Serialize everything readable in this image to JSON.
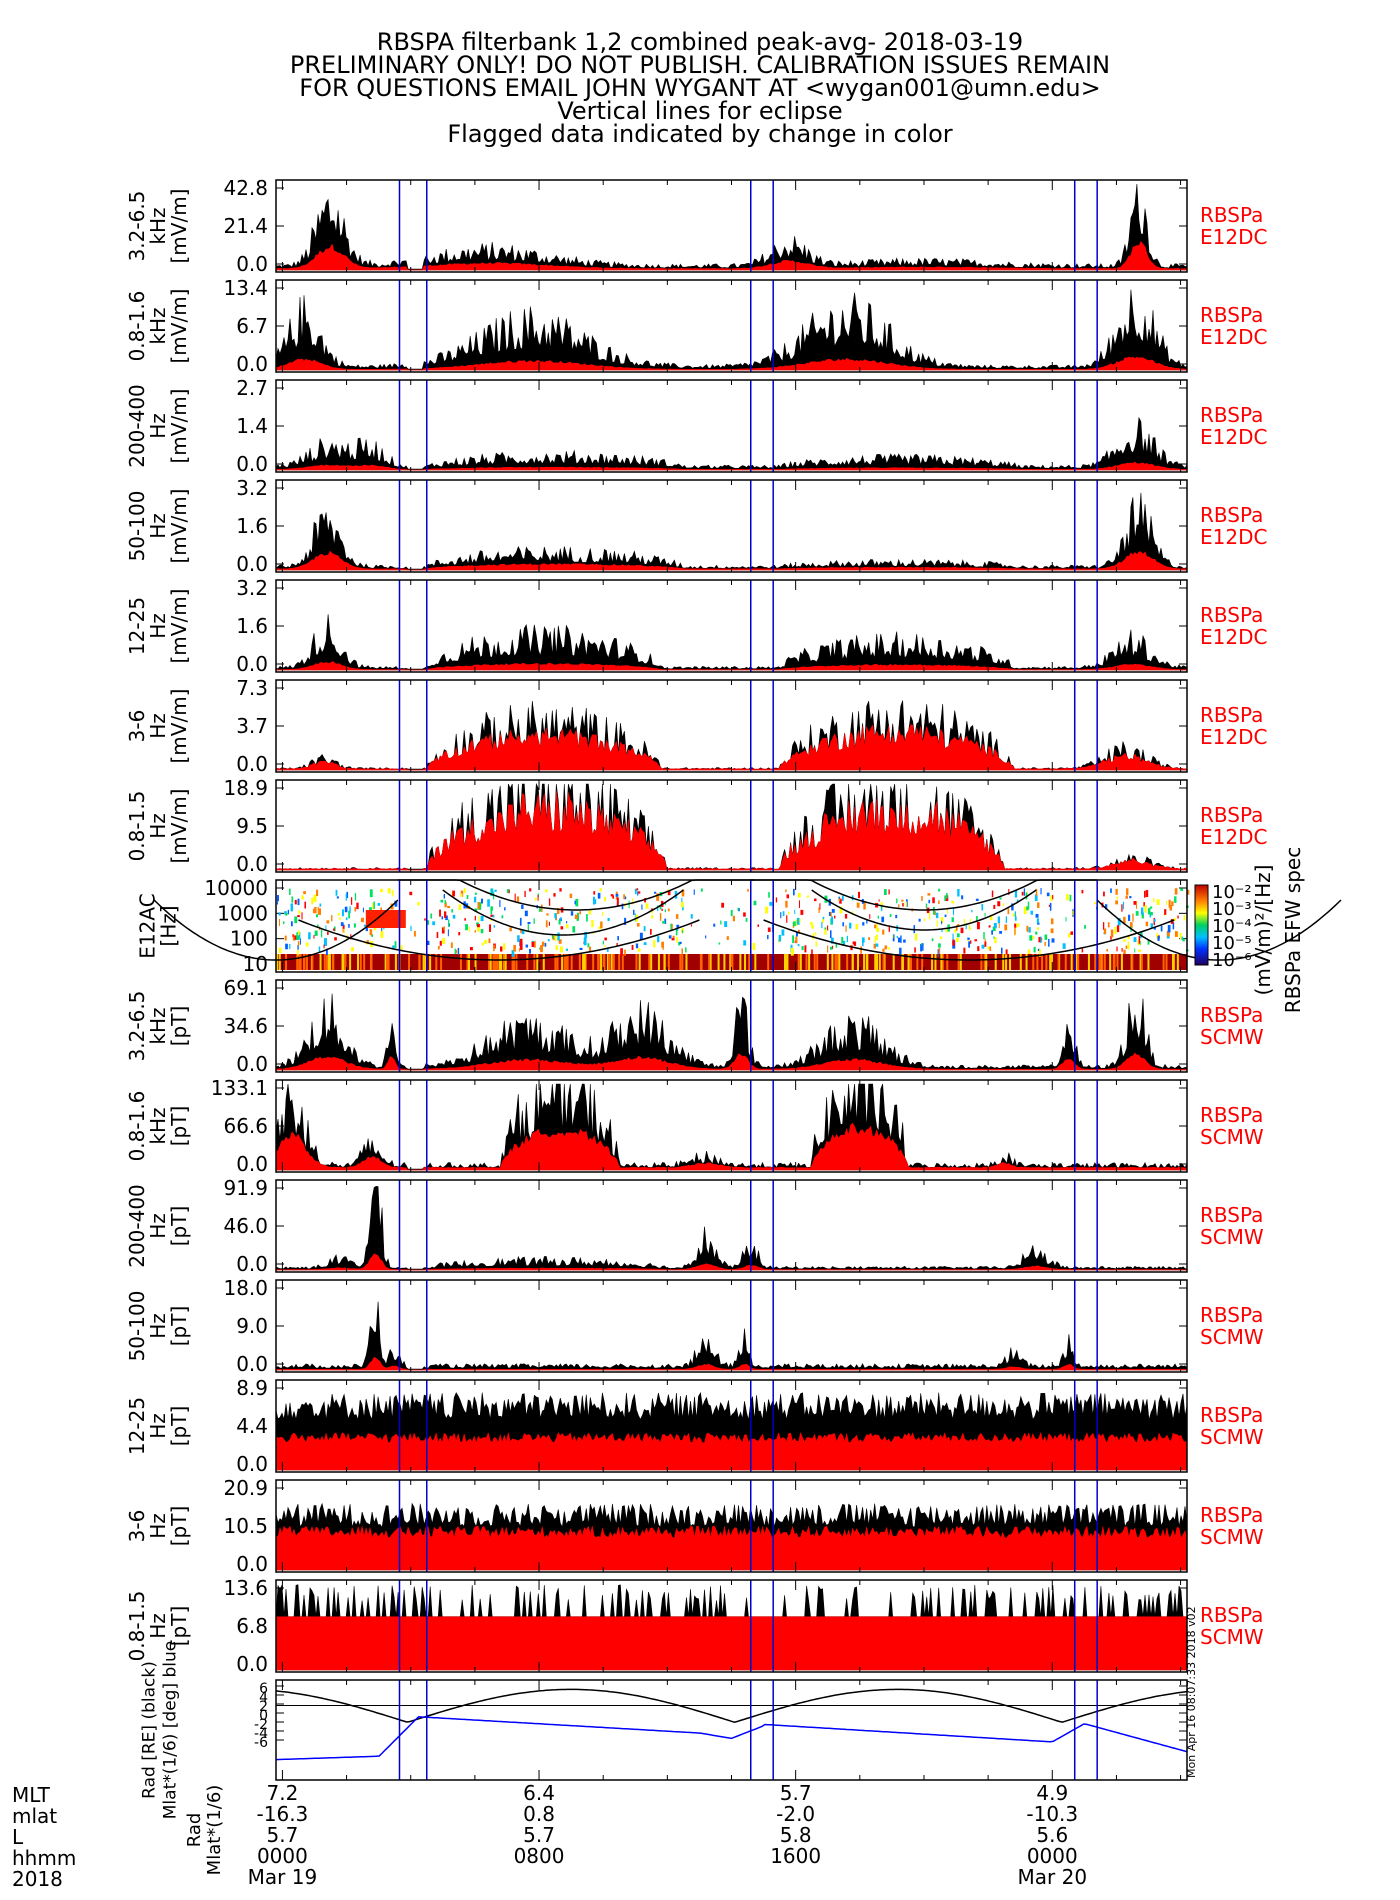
{
  "title_lines": [
    "RBSPA filterbank 1,2 combined peak-avg- 2018-03-19",
    "PRELIMINARY ONLY! DO NOT PUBLISH. CALIBRATION ISSUES REMAIN",
    "FOR QUESTIONS EMAIL JOHN WYGANT AT <wygan001@umn.edu>",
    "Vertical lines for eclipse",
    "Flagged data indicated by change in color"
  ],
  "colors": {
    "peak": "#000000",
    "avg": "#ff0000",
    "eclipse": "#0000cc",
    "label": "#ff0000",
    "trace_blue": "#0000ff"
  },
  "eclipse_hours": [
    3.65,
    4.5,
    14.6,
    15.3,
    24.7,
    25.4
  ],
  "time_range_hours": [
    -0.2,
    28.2
  ],
  "chart_data": [
    {
      "type": "area",
      "band_label": [
        "3.2-6.5",
        "kHz",
        "[mV/m]"
      ],
      "yticks": [
        "42.8",
        "21.4",
        "0.0"
      ],
      "ylim": [
        0,
        42.8
      ],
      "legend": [
        "RBSPa",
        "E12DC"
      ],
      "profile": "e_khz_high"
    },
    {
      "type": "area",
      "band_label": [
        "0.8-1.6",
        "kHz",
        "[mV/m]"
      ],
      "yticks": [
        "13.4",
        "6.7",
        "0.0"
      ],
      "ylim": [
        0,
        13.4
      ],
      "legend": [
        "RBSPa",
        "E12DC"
      ],
      "profile": "e_khz_low"
    },
    {
      "type": "area",
      "band_label": [
        "200-400",
        "Hz",
        "[mV/m]"
      ],
      "yticks": [
        "2.7",
        "1.4",
        "0.0"
      ],
      "ylim": [
        0,
        2.7
      ],
      "legend": [
        "RBSPa",
        "E12DC"
      ],
      "profile": "e_200"
    },
    {
      "type": "area",
      "band_label": [
        "50-100",
        "Hz",
        "[mV/m]"
      ],
      "yticks": [
        "3.2",
        "1.6",
        "0.0"
      ],
      "ylim": [
        0,
        3.2
      ],
      "legend": [
        "RBSPa",
        "E12DC"
      ],
      "profile": "e_50"
    },
    {
      "type": "area",
      "band_label": [
        "12-25",
        "Hz",
        "[mV/m]"
      ],
      "yticks": [
        "3.2",
        "1.6",
        "0.0"
      ],
      "ylim": [
        0,
        3.2
      ],
      "legend": [
        "RBSPa",
        "E12DC"
      ],
      "profile": "e_12"
    },
    {
      "type": "area",
      "band_label": [
        "3-6",
        "Hz",
        "[mV/m]"
      ],
      "yticks": [
        "7.3",
        "3.7",
        "0.0"
      ],
      "ylim": [
        0,
        7.3
      ],
      "legend": [
        "RBSPa",
        "E12DC"
      ],
      "profile": "e_3"
    },
    {
      "type": "area",
      "band_label": [
        "0.8-1.5",
        "Hz",
        "[mV/m]"
      ],
      "yticks": [
        "18.9",
        "9.5",
        "0.0"
      ],
      "ylim": [
        0,
        18.9
      ],
      "legend": [
        "RBSPa",
        "E12DC"
      ],
      "profile": "e_08"
    },
    {
      "type": "heatmap",
      "band_label": [
        "E12AC",
        "[Hz]"
      ],
      "yticks": [
        "10000",
        "1000",
        "100",
        "10"
      ],
      "colorbar_ticks": [
        "10⁻²",
        "10⁻³",
        "10⁻⁴",
        "10⁻⁵",
        "10⁻⁶"
      ],
      "colorbar_label": [
        "(mV/m)²/[Hz]",
        "RBSPa EFW spec"
      ]
    },
    {
      "type": "area",
      "band_label": [
        "3.2-6.5",
        "kHz",
        "[pT]"
      ],
      "yticks": [
        "69.1",
        "34.6",
        "0.0"
      ],
      "ylim": [
        0,
        69.1
      ],
      "legend": [
        "RBSPa",
        "SCMW"
      ],
      "profile": "b_khz_high"
    },
    {
      "type": "area",
      "band_label": [
        "0.8-1.6",
        "kHz",
        "[pT]"
      ],
      "yticks": [
        "133.1",
        "66.6",
        "0.0"
      ],
      "ylim": [
        0,
        133.1
      ],
      "legend": [
        "RBSPa",
        "SCMW"
      ],
      "profile": "b_khz_low"
    },
    {
      "type": "area",
      "band_label": [
        "200-400",
        "Hz",
        "[pT]"
      ],
      "yticks": [
        "91.9",
        "46.0",
        "0.0"
      ],
      "ylim": [
        0,
        91.9
      ],
      "legend": [
        "RBSPa",
        "SCMW"
      ],
      "profile": "b_200"
    },
    {
      "type": "area",
      "band_label": [
        "50-100",
        "Hz",
        "[pT]"
      ],
      "yticks": [
        "18.0",
        "9.0",
        "0.0"
      ],
      "ylim": [
        0,
        18.0
      ],
      "legend": [
        "RBSPa",
        "SCMW"
      ],
      "profile": "b_50"
    },
    {
      "type": "area",
      "band_label": [
        "12-25",
        "Hz",
        "[pT]"
      ],
      "yticks": [
        "8.9",
        "4.4",
        "0.0"
      ],
      "ylim": [
        0,
        8.9
      ],
      "legend": [
        "RBSPa",
        "SCMW"
      ],
      "profile": "b_12"
    },
    {
      "type": "area",
      "band_label": [
        "3-6",
        "Hz",
        "[pT]"
      ],
      "yticks": [
        "20.9",
        "10.5",
        "0.0"
      ],
      "ylim": [
        0,
        20.9
      ],
      "legend": [
        "RBSPa",
        "SCMW"
      ],
      "profile": "b_3"
    },
    {
      "type": "area",
      "band_label": [
        "0.8-1.5",
        "Hz",
        "[pT]"
      ],
      "yticks": [
        "13.6",
        "6.8",
        "0.0"
      ],
      "ylim": [
        0,
        13.6
      ],
      "legend": [
        "RBSPa",
        "SCMW"
      ],
      "profile": "b_08"
    },
    {
      "type": "line",
      "band_label": [
        "Rad [RE] (black)",
        "Mlat*(1/6) [deg] blue"
      ],
      "yticks": [
        "6",
        "4",
        "2",
        "0",
        "-2",
        "-4",
        "-6"
      ],
      "ylim": [
        -6.5,
        6.5
      ],
      "timestamp_text": "Mon Apr 16 08:07:33 2018 v02"
    }
  ],
  "footer": {
    "row_labels": [
      "MLT",
      "mlat",
      "L",
      "hhmm",
      "2018"
    ],
    "columns": [
      {
        "hour": 0,
        "values": [
          "7.2",
          "-16.3",
          "5.7",
          "0000",
          "Mar 19"
        ]
      },
      {
        "hour": 8,
        "values": [
          "6.4",
          "0.8",
          "5.7",
          "0800",
          ""
        ]
      },
      {
        "hour": 16,
        "values": [
          "5.7",
          "-2.0",
          "5.8",
          "1600",
          ""
        ]
      },
      {
        "hour": 24,
        "values": [
          "4.9",
          "-10.3",
          "5.6",
          "0000",
          "Mar 20"
        ]
      }
    ]
  }
}
